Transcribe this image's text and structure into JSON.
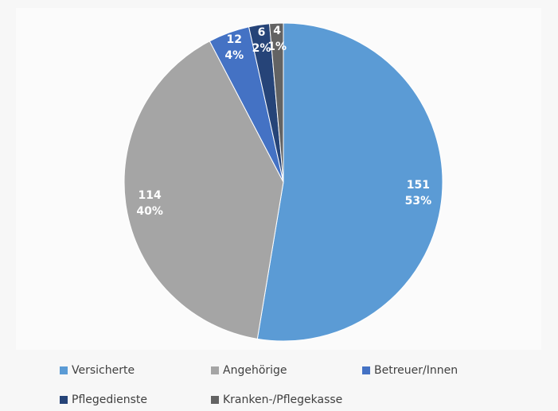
{
  "chart_data": {
    "type": "pie",
    "categories": [
      "Versicherte",
      "Angehörige",
      "Betreuer/Innen",
      "Pflegedienste",
      "Kranken-/Pflegekasse"
    ],
    "values": [
      151,
      114,
      12,
      6,
      4
    ],
    "percent_labels": [
      "53%",
      "40%",
      "4%",
      "2%",
      "1%"
    ],
    "colors": [
      "#5b9bd5",
      "#a5a5a5",
      "#4472c4",
      "#264478",
      "#636363"
    ],
    "legend": "bottom"
  }
}
